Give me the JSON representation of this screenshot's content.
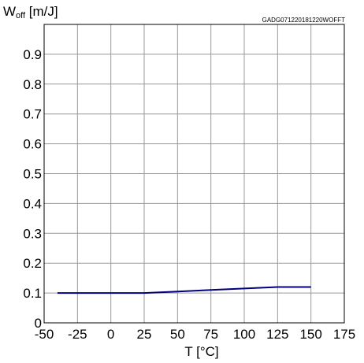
{
  "chart_data": {
    "type": "line",
    "y_label": {
      "main": "W",
      "sub": "off",
      "unit": " [m/J]"
    },
    "xlabel": "T [°C]",
    "code": "GADG071220181220WOFFT",
    "xlim": [
      -50,
      175
    ],
    "ylim": [
      0,
      1.0
    ],
    "x_ticks": [
      -50,
      -25,
      0,
      25,
      50,
      75,
      100,
      125,
      150,
      175
    ],
    "y_ticks": [
      0,
      0.1,
      0.2,
      0.3,
      0.4,
      0.5,
      0.6,
      0.7,
      0.8,
      0.9
    ],
    "grid": true,
    "series": [
      {
        "color": "#00007f",
        "points": [
          {
            "x": -40,
            "y": 0.1
          },
          {
            "x": 25,
            "y": 0.1
          },
          {
            "x": 50,
            "y": 0.105
          },
          {
            "x": 75,
            "y": 0.11
          },
          {
            "x": 100,
            "y": 0.115
          },
          {
            "x": 125,
            "y": 0.12
          },
          {
            "x": 150,
            "y": 0.12
          }
        ]
      }
    ]
  }
}
